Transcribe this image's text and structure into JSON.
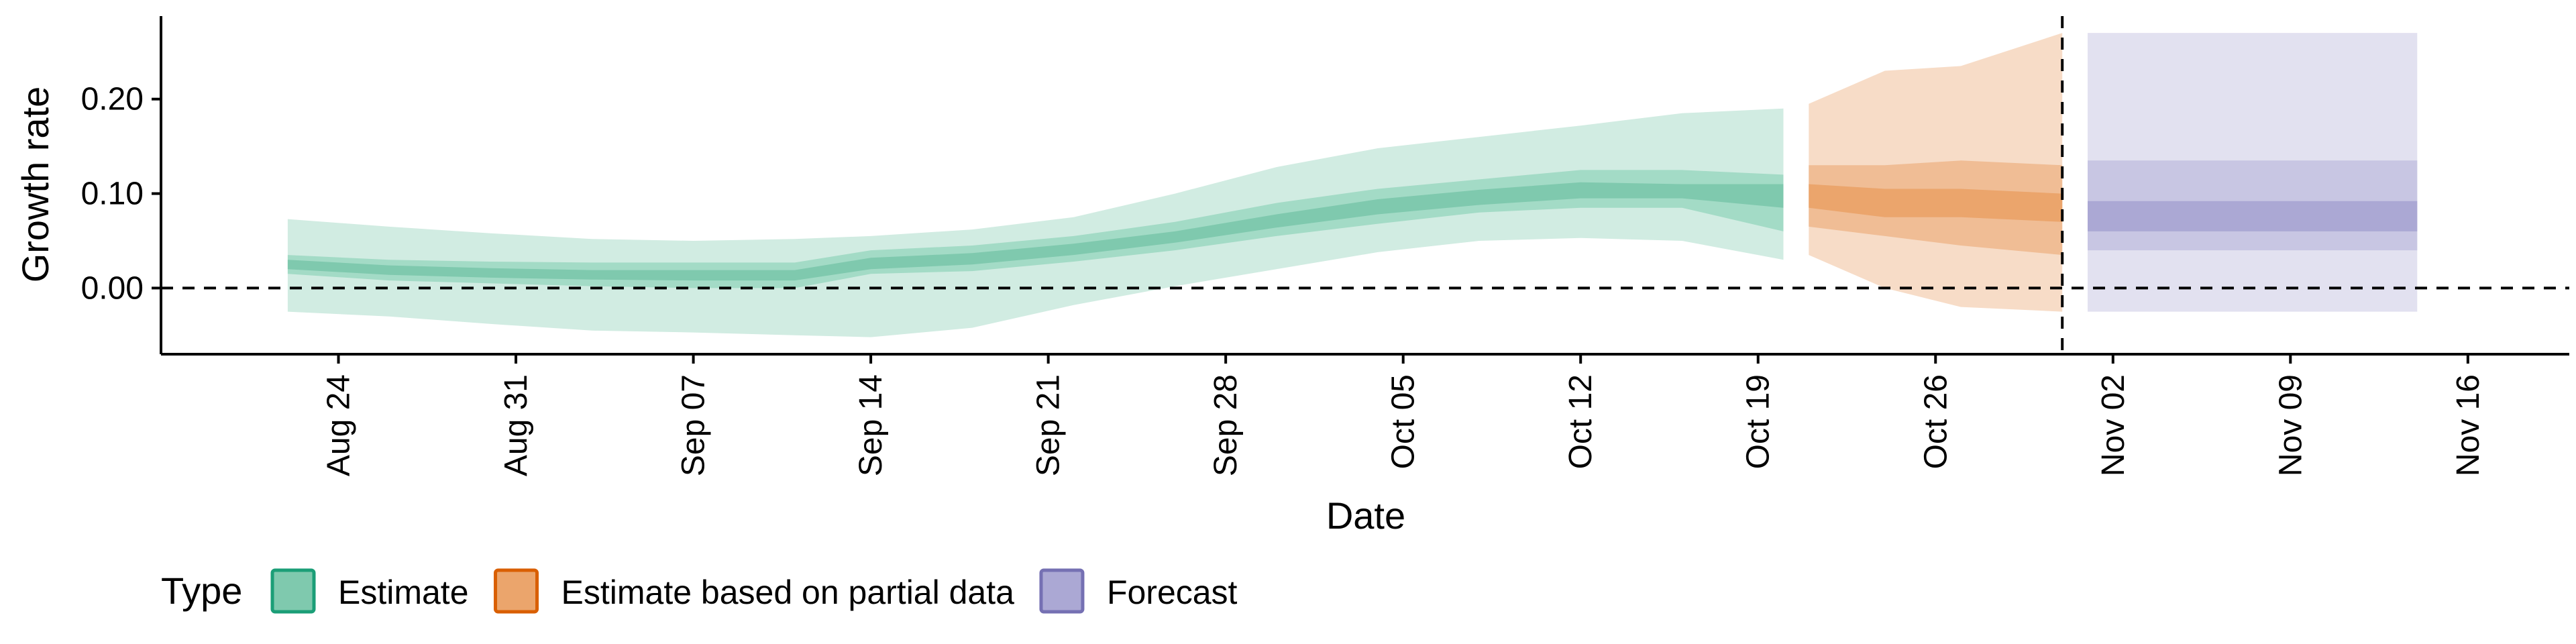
{
  "chart_data": {
    "type": "area",
    "xlabel": "Date",
    "ylabel": "Growth rate",
    "ylim": [
      -0.07,
      0.285
    ],
    "y_ticks": [
      0.0,
      0.1,
      0.2
    ],
    "y_tick_labels": [
      "0.00",
      "0.10",
      "0.20"
    ],
    "x_range": [
      "2020-08-17",
      "2020-11-20"
    ],
    "x_ticks": [
      "2020-08-24",
      "2020-08-31",
      "2020-09-07",
      "2020-09-14",
      "2020-09-21",
      "2020-09-28",
      "2020-10-05",
      "2020-10-12",
      "2020-10-19",
      "2020-10-26",
      "2020-11-02",
      "2020-11-09",
      "2020-11-16"
    ],
    "x_tick_labels": [
      "Aug 24",
      "Aug 31",
      "Sep 07",
      "Sep 14",
      "Sep 21",
      "Sep 28",
      "Oct 05",
      "Oct 12",
      "Oct 19",
      "Oct 26",
      "Nov 02",
      "Nov 09",
      "Nov 16"
    ],
    "hline_y": 0,
    "forecast_date": "2020-10-31",
    "legend": {
      "title": "Type",
      "position": "bottom",
      "entries": [
        {
          "label": "Estimate",
          "fill": "#7fc9ae",
          "stroke": "#1b9e77"
        },
        {
          "label": "Estimate based on partial data",
          "fill": "#eba56c",
          "stroke": "#d95f02"
        },
        {
          "label": "Forecast",
          "fill": "#aba8d4",
          "stroke": "#7570b3"
        }
      ]
    },
    "series": [
      {
        "name": "Estimate",
        "color": "#1b9e77",
        "band_colors": [
          "#d1ece2",
          "#a3dbc6",
          "#7fc9ae"
        ],
        "x": [
          "2020-08-22",
          "2020-08-26",
          "2020-08-30",
          "2020-09-03",
          "2020-09-07",
          "2020-09-11",
          "2020-09-14",
          "2020-09-18",
          "2020-09-22",
          "2020-09-26",
          "2020-09-30",
          "2020-10-04",
          "2020-10-08",
          "2020-10-12",
          "2020-10-16",
          "2020-10-20"
        ],
        "outer_lower": [
          -0.025,
          -0.03,
          -0.038,
          -0.045,
          -0.047,
          -0.05,
          -0.052,
          -0.042,
          -0.018,
          0.002,
          0.02,
          0.038,
          0.05,
          0.053,
          0.05,
          0.03
        ],
        "outer_upper": [
          0.073,
          0.065,
          0.058,
          0.052,
          0.05,
          0.052,
          0.055,
          0.062,
          0.075,
          0.1,
          0.128,
          0.148,
          0.16,
          0.172,
          0.185,
          0.19
        ],
        "mid_lower": [
          0.015,
          0.008,
          0.005,
          0.002,
          0.0,
          0.0,
          0.015,
          0.018,
          0.028,
          0.04,
          0.055,
          0.068,
          0.08,
          0.085,
          0.085,
          0.06
        ],
        "mid_upper": [
          0.035,
          0.03,
          0.028,
          0.027,
          0.027,
          0.027,
          0.04,
          0.045,
          0.055,
          0.07,
          0.09,
          0.105,
          0.115,
          0.125,
          0.125,
          0.12
        ],
        "inner_lower": [
          0.02,
          0.014,
          0.011,
          0.009,
          0.008,
          0.008,
          0.02,
          0.025,
          0.035,
          0.048,
          0.064,
          0.078,
          0.088,
          0.095,
          0.095,
          0.085
        ],
        "inner_upper": [
          0.03,
          0.024,
          0.021,
          0.019,
          0.019,
          0.019,
          0.032,
          0.037,
          0.047,
          0.06,
          0.078,
          0.094,
          0.104,
          0.112,
          0.11,
          0.11
        ]
      },
      {
        "name": "Estimate based on partial data",
        "color": "#d95f02",
        "band_colors": [
          "#f7dcc7",
          "#f0bd95",
          "#eba56c"
        ],
        "x": [
          "2020-10-21",
          "2020-10-24",
          "2020-10-27",
          "2020-10-31"
        ],
        "outer_lower": [
          0.035,
          0.0,
          -0.02,
          -0.025
        ],
        "outer_upper": [
          0.195,
          0.23,
          0.235,
          0.27
        ],
        "mid_lower": [
          0.065,
          0.055,
          0.045,
          0.035
        ],
        "mid_upper": [
          0.13,
          0.13,
          0.135,
          0.13
        ],
        "inner_lower": [
          0.085,
          0.075,
          0.075,
          0.07
        ],
        "inner_upper": [
          0.11,
          0.105,
          0.105,
          0.1
        ]
      },
      {
        "name": "Forecast",
        "color": "#7570b3",
        "band_colors": [
          "#e2e1f0",
          "#c8c6e3",
          "#aba8d4"
        ],
        "x": [
          "2020-11-01",
          "2020-11-14"
        ],
        "outer_lower": [
          -0.025,
          -0.025
        ],
        "outer_upper": [
          0.27,
          0.27
        ],
        "mid_lower": [
          0.04,
          0.04
        ],
        "mid_upper": [
          0.135,
          0.135
        ],
        "inner_lower": [
          0.06,
          0.06
        ],
        "inner_upper": [
          0.092,
          0.092
        ]
      }
    ]
  }
}
